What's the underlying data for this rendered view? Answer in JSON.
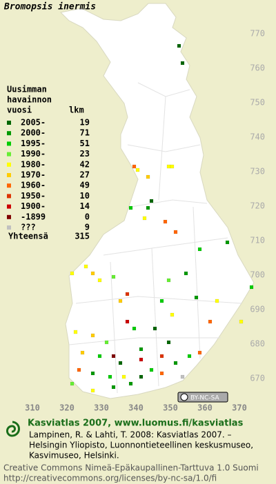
{
  "title": "Bromopsis inermis",
  "legend": {
    "heading": [
      "Uusimman",
      "havainnon",
      "vuosi"
    ],
    "count_heading": "lkm",
    "rows": [
      {
        "label": "2005-",
        "count": 19,
        "color": "#006600"
      },
      {
        "label": "2000-",
        "count": 71,
        "color": "#009900"
      },
      {
        "label": "1995-",
        "count": 51,
        "color": "#00cc00"
      },
      {
        "label": "1990-",
        "count": 23,
        "color": "#66ee33"
      },
      {
        "label": "1980-",
        "count": 42,
        "color": "#ffff00"
      },
      {
        "label": "1970-",
        "count": 27,
        "color": "#ffcc00"
      },
      {
        "label": "1960-",
        "count": 49,
        "color": "#ff6600"
      },
      {
        "label": "1950-",
        "count": 10,
        "color": "#dd3300"
      },
      {
        "label": "1900-",
        "count": 14,
        "color": "#cc0000"
      },
      {
        "label": "-1899",
        "count": 0,
        "color": "#800000"
      },
      {
        "label": "???",
        "count": 9,
        "color": "#c0c0c0"
      }
    ],
    "total_label": "Yhteensä",
    "total": 315
  },
  "map": {
    "xticks": [
      310,
      320,
      330,
      340,
      350,
      360,
      370
    ],
    "yticks": [
      670,
      680,
      690,
      700,
      710,
      720,
      730,
      740,
      750,
      760,
      770
    ],
    "cells": [
      [
        353,
        761,
        0
      ],
      [
        352,
        766,
        0
      ],
      [
        339,
        731,
        6
      ],
      [
        340,
        730,
        4
      ],
      [
        343,
        728,
        5
      ],
      [
        349,
        731,
        4
      ],
      [
        350,
        731,
        4
      ],
      [
        344,
        721,
        0
      ],
      [
        343,
        719,
        1
      ],
      [
        338,
        719,
        2
      ],
      [
        348,
        715,
        6
      ],
      [
        342,
        716,
        4
      ],
      [
        351,
        712,
        6
      ],
      [
        366,
        709,
        1
      ],
      [
        358,
        707,
        2
      ],
      [
        325,
        702,
        4
      ],
      [
        327,
        700,
        5
      ],
      [
        329,
        698,
        4
      ],
      [
        321,
        700,
        4
      ],
      [
        333,
        699,
        3
      ],
      [
        337,
        694,
        7
      ],
      [
        347,
        692,
        2
      ],
      [
        357,
        693,
        1
      ],
      [
        373,
        696,
        2
      ],
      [
        363,
        692,
        4
      ],
      [
        370,
        686,
        4
      ],
      [
        361,
        686,
        6
      ],
      [
        322,
        683,
        4
      ],
      [
        327,
        682,
        5
      ],
      [
        331,
        680,
        3
      ],
      [
        337,
        686,
        8
      ],
      [
        341,
        678,
        1
      ],
      [
        349,
        680,
        0
      ],
      [
        355,
        676,
        2
      ],
      [
        358,
        677,
        6
      ],
      [
        324,
        677,
        5
      ],
      [
        329,
        676,
        2
      ],
      [
        335,
        674,
        0
      ],
      [
        341,
        675,
        8
      ],
      [
        347,
        676,
        7
      ],
      [
        351,
        674,
        1
      ],
      [
        323,
        672,
        6
      ],
      [
        327,
        671,
        1
      ],
      [
        332,
        670,
        2
      ],
      [
        336,
        670,
        4
      ],
      [
        341,
        670,
        0
      ],
      [
        347,
        671,
        6
      ],
      [
        353,
        670,
        10
      ],
      [
        327,
        666,
        4
      ],
      [
        333,
        667,
        1
      ],
      [
        321,
        668,
        3
      ],
      [
        354,
        700,
        1
      ],
      [
        349,
        698,
        3
      ],
      [
        335,
        692,
        5
      ],
      [
        339,
        684,
        2
      ],
      [
        345,
        684,
        0
      ],
      [
        350,
        688,
        4
      ],
      [
        333,
        676,
        9
      ],
      [
        344,
        672,
        2
      ],
      [
        338,
        668,
        1
      ]
    ]
  },
  "badge": "BY-NC-SA",
  "footer": {
    "site": "Kasviatlas 2007, www.luomus.fi/kasviatlas",
    "citation": [
      "Lampinen, R. & Lahti, T. 2008: Kasviatlas 2007. –",
      "Helsingin Yliopisto, Luonnontieteellinen keskusmuseo,",
      "Kasvimuseo, Helsinki."
    ],
    "license": [
      "Creative Commons Nimeä-Epäkaupallinen-Tarttuva 1.0 Suomi",
      "http://creativecommons.org/licenses/by-nc-sa/1.0/fi"
    ]
  }
}
